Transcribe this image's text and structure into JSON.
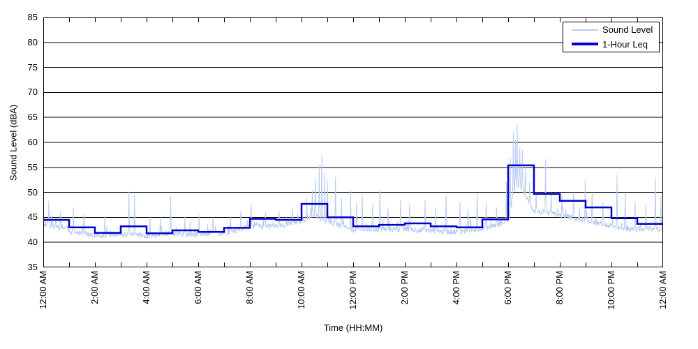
{
  "chart_data": {
    "type": "line",
    "title": "",
    "xlabel": "Time (HH:MM)",
    "ylabel": "Sound Level (dBA)",
    "ylim": [
      35,
      85
    ],
    "yticks": [
      85,
      80,
      75,
      70,
      65,
      60,
      55,
      50,
      45,
      40,
      35
    ],
    "x_minutes_range": [
      0,
      1440
    ],
    "xtick_minor_every_minutes": 60,
    "xtick_major_every_minutes": 120,
    "xtick_labels": [
      "12:00 AM",
      "2:00 AM",
      "4:00 AM",
      "6:00 AM",
      "8:00 AM",
      "10:00 AM",
      "12:00 PM",
      "2:00 PM",
      "4:00 PM",
      "6:00 PM",
      "8:00 PM",
      "10:00 PM",
      "12:00 AM"
    ],
    "grid": "horizontal",
    "legend": {
      "position": "top-right",
      "entries": [
        {
          "label": "Sound Level"
        },
        {
          "label": "1-Hour Leq"
        }
      ]
    },
    "colors": {
      "sound_level": "#b9cbf2",
      "leq": "#0000cc",
      "grid": "#000000",
      "axis": "#000000",
      "background": "#ffffff"
    },
    "series": [
      {
        "name": "Sound Level",
        "kind": "minute_noise",
        "seed": 20240607,
        "noise": {
          "jitter": 1.1,
          "bump_prob": 0.12,
          "bump_max": 2.6
        },
        "floor_envelope": [
          [
            0,
            43.3
          ],
          [
            55,
            42.6
          ],
          [
            60,
            42.0
          ],
          [
            120,
            41.1
          ],
          [
            175,
            41.4
          ],
          [
            240,
            41.1
          ],
          [
            300,
            41.5
          ],
          [
            360,
            41.3
          ],
          [
            420,
            41.7
          ],
          [
            455,
            42.3
          ],
          [
            480,
            43.0
          ],
          [
            540,
            43.1
          ],
          [
            585,
            43.6
          ],
          [
            600,
            44.2
          ],
          [
            630,
            45.2
          ],
          [
            655,
            44.0
          ],
          [
            680,
            43.4
          ],
          [
            715,
            42.3
          ],
          [
            780,
            42.4
          ],
          [
            840,
            42.4
          ],
          [
            900,
            42.1
          ],
          [
            960,
            41.9
          ],
          [
            1020,
            42.5
          ],
          [
            1055,
            43.3
          ],
          [
            1080,
            44.3
          ],
          [
            1088,
            47.5
          ],
          [
            1095,
            50.5
          ],
          [
            1108,
            51.0
          ],
          [
            1118,
            49.5
          ],
          [
            1128,
            47.5
          ],
          [
            1140,
            46.2
          ],
          [
            1155,
            45.8
          ],
          [
            1185,
            45.4
          ],
          [
            1215,
            45.0
          ],
          [
            1245,
            44.4
          ],
          [
            1275,
            43.9
          ],
          [
            1305,
            43.3
          ],
          [
            1335,
            42.7
          ],
          [
            1380,
            42.3
          ],
          [
            1440,
            42.5
          ]
        ],
        "spikes": [
          [
            13,
            48.3
          ],
          [
            40,
            46.3
          ],
          [
            70,
            47.0
          ],
          [
            94,
            45.8
          ],
          [
            143,
            45.3
          ],
          [
            199,
            50.2
          ],
          [
            212,
            49.6
          ],
          [
            248,
            45.2
          ],
          [
            272,
            45.0
          ],
          [
            296,
            49.3
          ],
          [
            329,
            45.2
          ],
          [
            362,
            45.5
          ],
          [
            394,
            45.0
          ],
          [
            435,
            45.3
          ],
          [
            459,
            46.2
          ],
          [
            483,
            47.6
          ],
          [
            516,
            46.0
          ],
          [
            548,
            46.2
          ],
          [
            579,
            47.0
          ],
          [
            600,
            47.0
          ],
          [
            612,
            49.0
          ],
          [
            625,
            50.5
          ],
          [
            632,
            53.0
          ],
          [
            641,
            55.5
          ],
          [
            647,
            57.5
          ],
          [
            654,
            54.0
          ],
          [
            660,
            52.5
          ],
          [
            679,
            53.0
          ],
          [
            693,
            49.0
          ],
          [
            714,
            50.5
          ],
          [
            728,
            48.0
          ],
          [
            741,
            49.8
          ],
          [
            765,
            47.5
          ],
          [
            782,
            50.5
          ],
          [
            801,
            47.0
          ],
          [
            830,
            48.5
          ],
          [
            851,
            47.5
          ],
          [
            887,
            48.5
          ],
          [
            911,
            47.0
          ],
          [
            936,
            49.5
          ],
          [
            968,
            48.0
          ],
          [
            987,
            47.0
          ],
          [
            1008,
            49.8
          ],
          [
            1029,
            48.0
          ],
          [
            1053,
            47.0
          ],
          [
            1076,
            52.0
          ],
          [
            1085,
            57.0
          ],
          [
            1092,
            62.2
          ],
          [
            1097,
            60.5
          ],
          [
            1101,
            63.6
          ],
          [
            1107,
            59.0
          ],
          [
            1113,
            58.5
          ],
          [
            1120,
            55.0
          ],
          [
            1130,
            52.0
          ],
          [
            1145,
            50.0
          ],
          [
            1167,
            56.6
          ],
          [
            1180,
            50.0
          ],
          [
            1205,
            49.5
          ],
          [
            1232,
            50.0
          ],
          [
            1259,
            52.3
          ],
          [
            1275,
            50.0
          ],
          [
            1300,
            48.0
          ],
          [
            1333,
            53.5
          ],
          [
            1352,
            50.0
          ],
          [
            1375,
            48.0
          ],
          [
            1400,
            47.5
          ],
          [
            1422,
            53.0
          ],
          [
            1435,
            49.5
          ]
        ]
      },
      {
        "name": "1-Hour Leq",
        "kind": "hourly_step",
        "values": [
          44.5,
          43.0,
          41.9,
          43.2,
          41.8,
          42.4,
          42.1,
          42.9,
          44.7,
          44.5,
          47.7,
          45.0,
          43.2,
          43.5,
          43.8,
          43.2,
          43.0,
          44.6,
          55.4,
          49.7,
          48.3,
          47.0,
          44.8,
          43.7
        ]
      }
    ]
  }
}
